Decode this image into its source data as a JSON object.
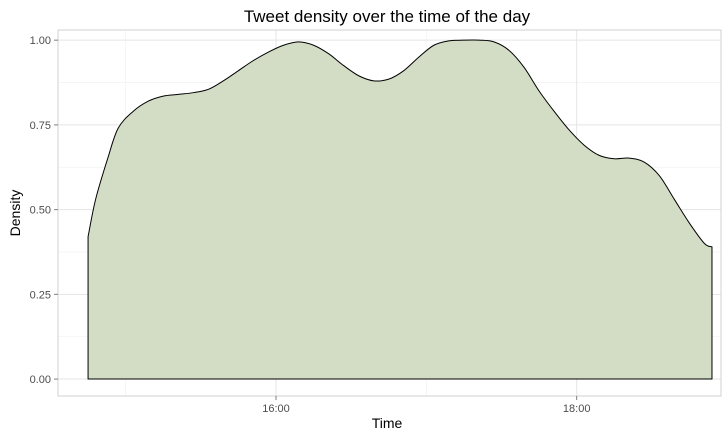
{
  "chart_data": {
    "type": "area",
    "title": "Tweet density over the time of the day",
    "xlabel": "Time",
    "ylabel": "Density",
    "fill_color": "#d3ddc5",
    "line_color": "#000000",
    "grid": true,
    "xlim": [
      14.55,
      18.96
    ],
    "ylim": [
      -0.05,
      1.03
    ],
    "x_ticks": [
      {
        "value": 16,
        "label": "16:00"
      },
      {
        "value": 18,
        "label": "18:00"
      }
    ],
    "y_ticks": [
      {
        "value": 0.0,
        "label": "0.00"
      },
      {
        "value": 0.25,
        "label": "0.25"
      },
      {
        "value": 0.5,
        "label": "0.50"
      },
      {
        "value": 0.75,
        "label": "0.75"
      },
      {
        "value": 1.0,
        "label": "1.00"
      }
    ],
    "series": [
      {
        "name": "density",
        "x": [
          14.75,
          14.8,
          14.88,
          14.95,
          15.05,
          15.15,
          15.25,
          15.35,
          15.45,
          15.55,
          15.65,
          15.75,
          15.85,
          15.95,
          16.05,
          16.15,
          16.25,
          16.35,
          16.45,
          16.55,
          16.65,
          16.75,
          16.85,
          16.95,
          17.05,
          17.15,
          17.25,
          17.35,
          17.45,
          17.55,
          17.65,
          17.75,
          17.85,
          17.95,
          18.05,
          18.15,
          18.25,
          18.35,
          18.45,
          18.55,
          18.65,
          18.75,
          18.85,
          18.9
        ],
        "y": [
          0.42,
          0.53,
          0.65,
          0.74,
          0.79,
          0.82,
          0.835,
          0.84,
          0.845,
          0.855,
          0.88,
          0.91,
          0.94,
          0.965,
          0.985,
          0.995,
          0.985,
          0.96,
          0.925,
          0.895,
          0.88,
          0.885,
          0.91,
          0.95,
          0.985,
          0.998,
          1.0,
          1.0,
          0.995,
          0.97,
          0.92,
          0.85,
          0.79,
          0.735,
          0.69,
          0.66,
          0.65,
          0.652,
          0.64,
          0.6,
          0.53,
          0.46,
          0.4,
          0.39
        ]
      }
    ]
  }
}
